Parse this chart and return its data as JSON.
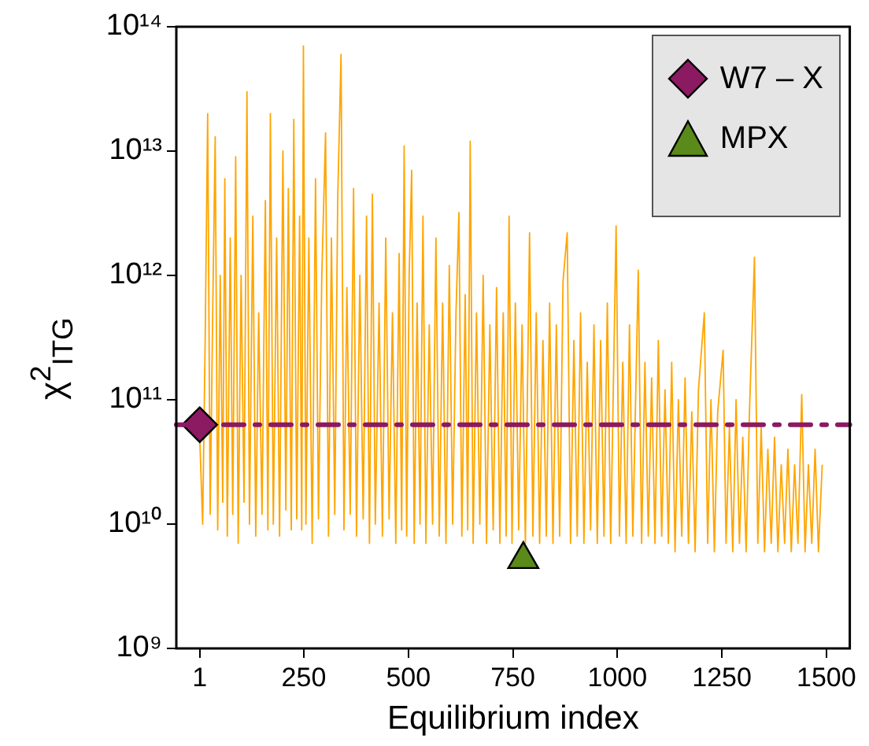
{
  "chart_data": {
    "type": "line",
    "xlabel": "Equilibrium index",
    "ylabel": "χ$^{2}$$_{ITG}$",
    "log": "y",
    "ref_lines": [
      {
        "axis": "y",
        "value": 63000000000,
        "color": "#8b1a62",
        "line_style": "dashed"
      }
    ],
    "grid": false,
    "legend": "top right",
    "xlim": [
      -55,
      1556
    ],
    "xticks": [
      1,
      250,
      500,
      750,
      1000,
      1250,
      1500
    ],
    "ylim": [
      1000000000,
      100000000000000
    ],
    "yticks": [
      {
        "value": 1000000000,
        "label": "10⁹"
      },
      {
        "value": 10000000000,
        "label": "10¹⁰"
      },
      {
        "value": 100000000000,
        "label": "10¹¹"
      },
      {
        "value": 1000000000000,
        "label": "10¹²"
      },
      {
        "value": 10000000000000,
        "label": "10¹³"
      },
      {
        "value": 100000000000000,
        "label": "10¹⁴"
      }
    ],
    "series": [
      {
        "color": "#ffa500",
        "marker": "none",
        "line_style": "solid",
        "x": [
          1,
          8,
          14,
          20,
          26,
          32,
          38,
          44,
          50,
          56,
          61,
          67,
          74,
          80,
          87,
          93,
          100,
          107,
          114,
          120,
          128,
          135,
          142,
          150,
          158,
          164,
          170,
          177,
          185,
          192,
          200,
          207,
          213,
          220,
          226,
          233,
          240,
          245,
          249,
          255,
          262,
          270,
          278,
          285,
          293,
          302,
          309,
          316,
          324,
          331,
          339,
          346,
          353,
          361,
          369,
          376,
          384,
          392,
          400,
          407,
          414,
          421,
          430,
          438,
          446,
          454,
          462,
          470,
          478,
          484,
          490,
          496,
          502,
          508,
          514,
          521,
          528,
          535,
          542,
          550,
          558,
          566,
          574,
          582,
          590,
          598,
          606,
          614,
          621,
          628,
          636,
          642,
          648,
          655,
          663,
          671,
          679,
          687,
          695,
          703,
          711,
          719,
          727,
          734,
          741,
          748,
          756,
          764,
          772,
          780,
          790,
          798,
          806,
          814,
          822,
          830,
          838,
          846,
          854,
          862,
          870,
          880,
          888,
          896,
          904,
          912,
          920,
          928,
          936,
          944,
          952,
          960,
          968,
          976,
          984,
          997,
          1005,
          1013,
          1021,
          1029,
          1037,
          1050,
          1058,
          1066,
          1074,
          1082,
          1090,
          1098,
          1106,
          1114,
          1122,
          1130,
          1138,
          1146,
          1154,
          1162,
          1170,
          1178,
          1186,
          1194,
          1208,
          1216,
          1224,
          1232,
          1240,
          1253,
          1260,
          1268,
          1276,
          1284,
          1292,
          1300,
          1308,
          1316,
          1328,
          1336,
          1344,
          1352,
          1360,
          1368,
          1376,
          1384,
          1392,
          1400,
          1408,
          1416,
          1424,
          1432,
          1441,
          1449,
          1457,
          1465,
          1473,
          1481,
          1490
        ],
        "values": [
          50000000000.0,
          10000000000.0,
          300000000000.0,
          20000000000000.0,
          12000000000.0,
          500000000000.0,
          13000000000000.0,
          9000000000.0,
          1000000000000.0,
          15000000000.0,
          6000000000000.0,
          8000000000.0,
          2000000000000.0,
          12000000000.0,
          9000000000000.0,
          7000000000.0,
          1000000000000.0,
          15000000000.0,
          30000000000000.0,
          10000000000.0,
          3000000000000.0,
          8000000000.0,
          500000000000.0,
          12000000000.0,
          4000000000000.0,
          9000000000.0,
          20000000000000.0,
          10000000000.0,
          2000000000000.0,
          8000000000.0,
          10000000000000.0,
          13000000000.0,
          5000000000000.0,
          9000000000.0,
          18000000000000.0,
          11000000000.0,
          3000000000000.0,
          9000000000.0,
          70000000000000.0,
          10000000000.0,
          2000000000000.0,
          7000000000.0,
          6000000000000.0,
          11000000000.0,
          1000000000000.0,
          14000000000000.0,
          8000000000.0,
          2000000000000.0,
          12000000000.0,
          4000000000000.0,
          60000000000000.0,
          9000000000.0,
          800000000000.0,
          12000000000.0,
          5000000000000.0,
          8000000000.0,
          1000000000000.0,
          11000000000.0,
          3000000000000.0,
          7000000000.0,
          4500000000000.0,
          10000000000.0,
          600000000000.0,
          8000000000.0,
          2000000000000.0,
          11000000000.0,
          500000000000.0,
          7000000000.0,
          1500000000000.0,
          9000000000.0,
          11000000000000.0,
          8000000000.0,
          1000000000000.0,
          7000000000000.0,
          7000000000.0,
          600000000000.0,
          10000000000.0,
          3000000000000.0,
          7000000000.0,
          400000000000.0,
          10000000000.0,
          2000000000000.0,
          8000000000.0,
          600000000000.0,
          7000000000.0,
          1200000000000.0,
          10000000000.0,
          500000000000.0,
          3200000000000.0,
          8000000000.0,
          700000000000.0,
          9000000000.0,
          12000000000000.0,
          7000000000.0,
          500000000000.0,
          10000000000.0,
          1000000000000.0,
          7000000000.0,
          400000000000.0,
          9000000000.0,
          800000000000.0,
          7000000000.0,
          500000000000.0,
          8000000000.0,
          3000000000000.0,
          7000000000.0,
          600000000000.0,
          9000000000.0,
          400000000000.0,
          7000000000.0,
          2200000000000.0,
          8000000000.0,
          500000000000.0,
          7000000000.0,
          300000000000.0,
          8000000000.0,
          600000000000.0,
          7000000000.0,
          400000000000.0,
          8000000000.0,
          900000000000.0,
          2200000000000.0,
          7000000000.0,
          300000000000.0,
          8000000000.0,
          500000000000.0,
          7000000000.0,
          200000000000.0,
          9000000000.0,
          400000000000.0,
          7000000000.0,
          300000000000.0,
          8000000000.0,
          600000000000.0,
          7000000000.0,
          2500000000000.0,
          8000000000.0,
          200000000000.0,
          7000000000.0,
          400000000000.0,
          8000000000.0,
          1100000000000.0,
          7000000000.0,
          200000000000.0,
          8000000000.0,
          150000000000.0,
          7000000000.0,
          300000000000.0,
          8000000000.0,
          120000000000.0,
          7000000000.0,
          200000000000.0,
          6000000000.0,
          100000000000.0,
          8000000000.0,
          150000000000.0,
          7000000000.0,
          80000000000.0,
          6000000000.0,
          120000000000.0,
          500000000000.0,
          7000000000.0,
          100000000000.0,
          6000000000.0,
          80000000000.0,
          250000000000.0,
          7000000000.0,
          60000000000.0,
          6000000000.0,
          100000000000.0,
          7000000000.0,
          50000000000.0,
          6000000000.0,
          80000000000.0,
          1400000000000.0,
          7000000000.0,
          60000000000.0,
          6000000000.0,
          40000000000.0,
          7000000000.0,
          50000000000.0,
          6000000000.0,
          30000000000.0,
          7000000000.0,
          40000000000.0,
          6000000000.0,
          30000000000.0,
          7000000000.0,
          110000000000.0,
          6000000000.0,
          30000000000.0,
          7000000000.0,
          40000000000.0,
          6000000000.0,
          30000000000.0
        ]
      },
      {
        "type": "scatter",
        "name": "W7 – X",
        "color": "#8b1a62",
        "marker": "diamond",
        "x": [
          1
        ],
        "values": [
          63000000000
        ]
      },
      {
        "type": "scatter",
        "name": "MPX",
        "color": "#5a8a1a",
        "marker": "triangle",
        "x": [
          775
        ],
        "values": [
          5200000000
        ]
      }
    ]
  }
}
